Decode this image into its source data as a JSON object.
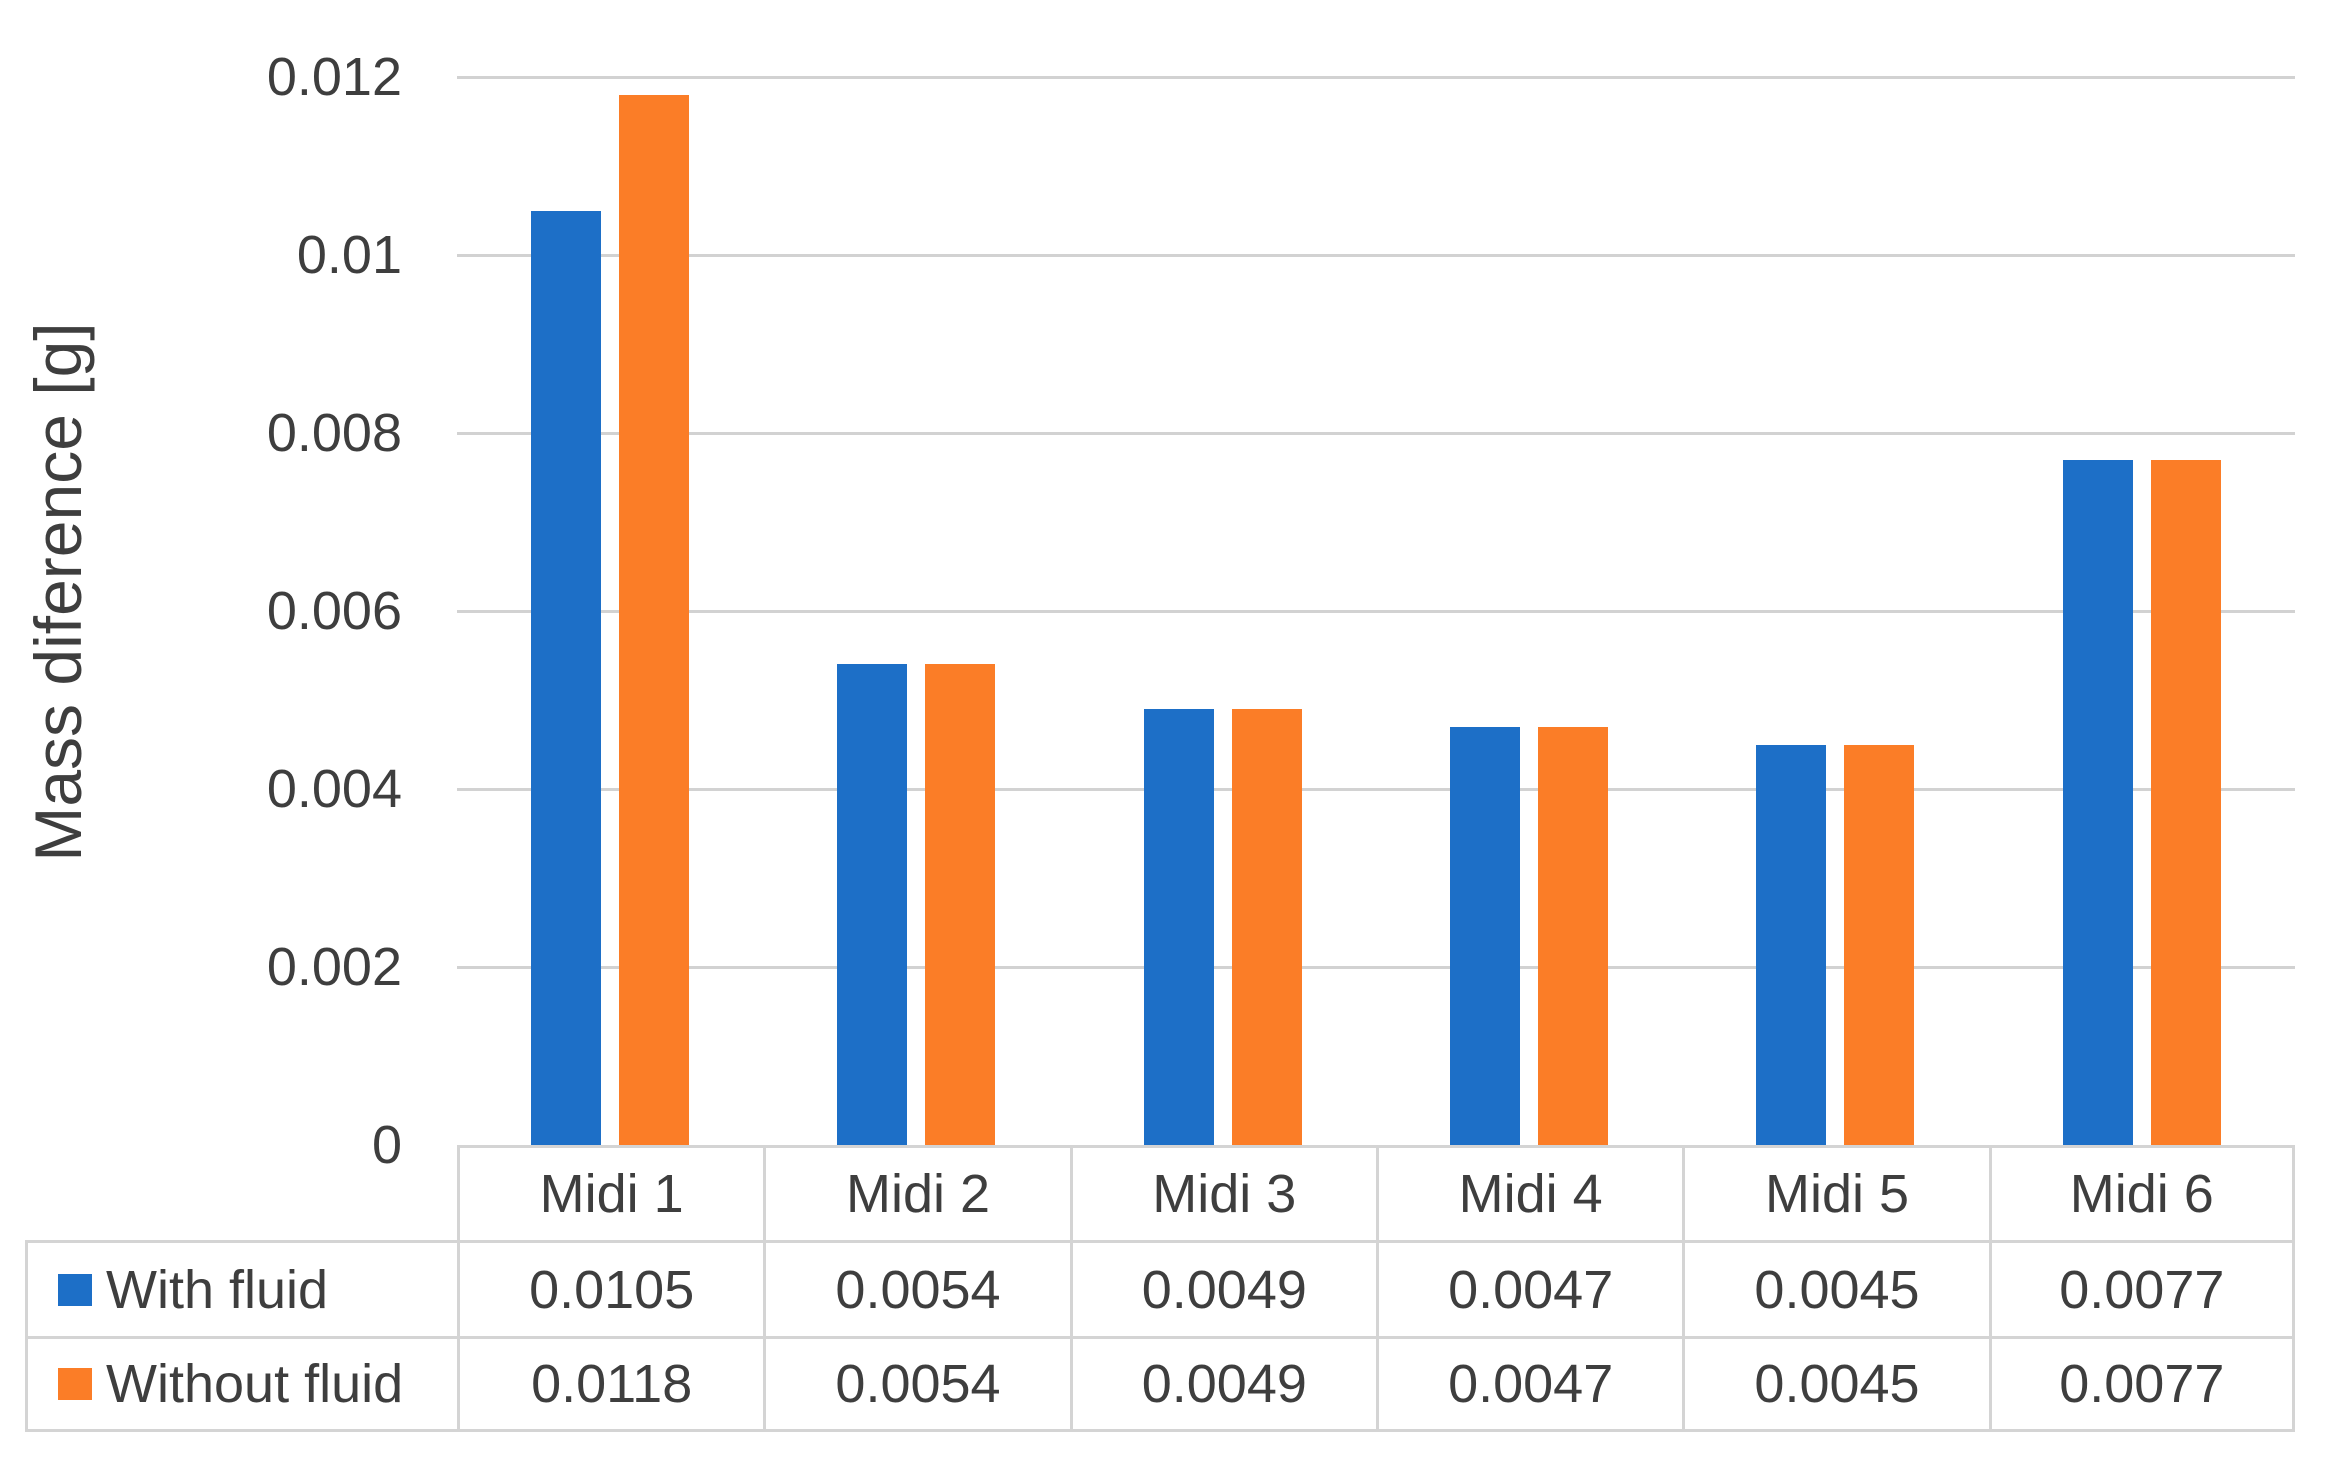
{
  "chart_data": {
    "type": "bar",
    "title": "",
    "xlabel": "",
    "ylabel": "Mass diference [g]",
    "categories": [
      "Midi 1",
      "Midi 2",
      "Midi 3",
      "Midi 4",
      "Midi 5",
      "Midi 6"
    ],
    "series": [
      {
        "name": "With fluid",
        "color": "#1d6fc7",
        "values": [
          0.0105,
          0.0054,
          0.0049,
          0.0047,
          0.0045,
          0.0077
        ]
      },
      {
        "name": "Without fluid",
        "color": "#fb7d27",
        "values": [
          0.0118,
          0.0054,
          0.0049,
          0.0047,
          0.0045,
          0.0077
        ]
      }
    ],
    "ylim": [
      0,
      0.012
    ],
    "ytick_labels": [
      "0",
      "0.002",
      "0.004",
      "0.006",
      "0.008",
      "0.01",
      "0.012"
    ],
    "ytick_values": [
      0,
      0.002,
      0.004,
      0.006,
      0.008,
      0.01,
      0.012
    ],
    "grid": true,
    "legend_position": "table-rows-below-chart"
  },
  "colors": {
    "series_blue": "#1d6fc7",
    "series_orange": "#fb7d27",
    "gridline": "#d2d2d2",
    "table_border": "#d4d4d4",
    "text": "#3e3e3e",
    "background": "#ffffff"
  }
}
